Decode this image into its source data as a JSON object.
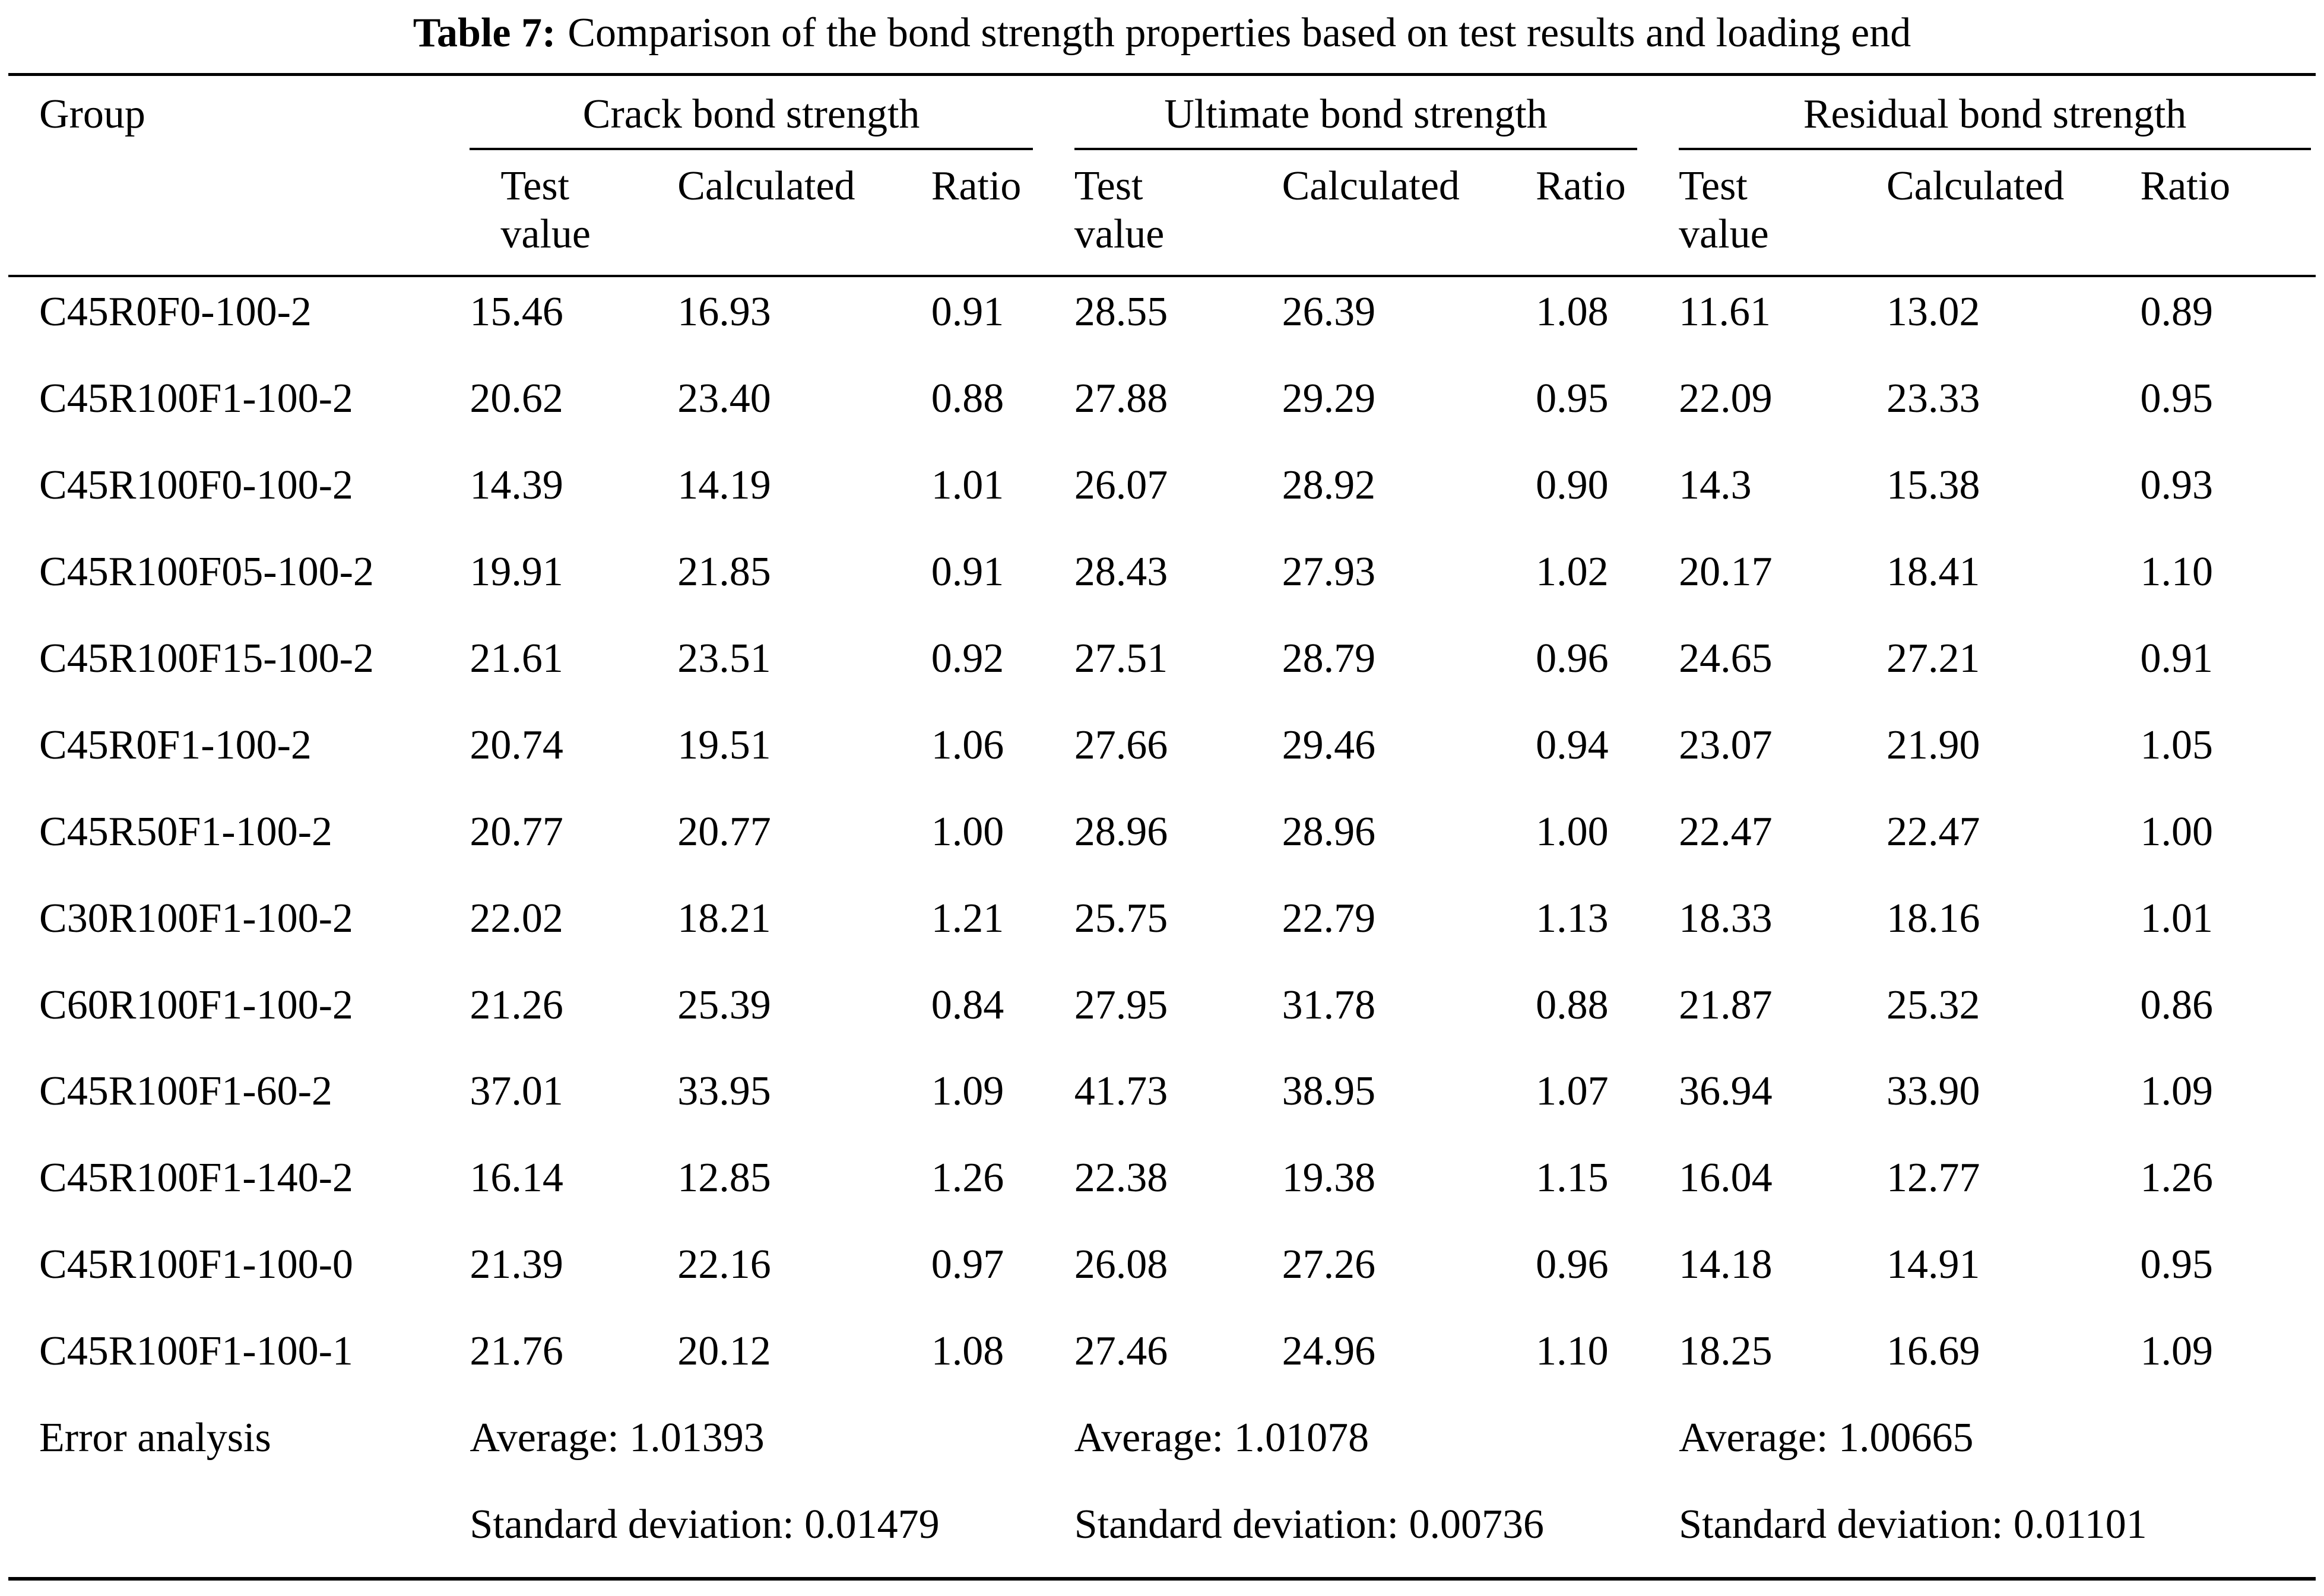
{
  "title": {
    "label": "Table 7:",
    "text": "Comparison of the bond strength properties based on test results and loading end"
  },
  "table": {
    "group_header": "Group",
    "span_headers": [
      "Crack bond strength",
      "Ultimate bond strength",
      "Residual bond strength"
    ],
    "sub_headers": [
      "Test value",
      "Calculated",
      "Ratio"
    ],
    "rows": [
      {
        "group": "C45R0F0-100-2",
        "crack": [
          "15.46",
          "16.93",
          "0.91"
        ],
        "ultimate": [
          "28.55",
          "26.39",
          "1.08"
        ],
        "residual": [
          "11.61",
          "13.02",
          "0.89"
        ]
      },
      {
        "group": "C45R100F1-100-2",
        "crack": [
          "20.62",
          "23.40",
          "0.88"
        ],
        "ultimate": [
          "27.88",
          "29.29",
          "0.95"
        ],
        "residual": [
          "22.09",
          "23.33",
          "0.95"
        ]
      },
      {
        "group": "C45R100F0-100-2",
        "crack": [
          "14.39",
          "14.19",
          "1.01"
        ],
        "ultimate": [
          "26.07",
          "28.92",
          "0.90"
        ],
        "residual": [
          "14.3",
          "15.38",
          "0.93"
        ]
      },
      {
        "group": "C45R100F05-100-2",
        "crack": [
          "19.91",
          "21.85",
          "0.91"
        ],
        "ultimate": [
          "28.43",
          "27.93",
          "1.02"
        ],
        "residual": [
          "20.17",
          "18.41",
          "1.10"
        ]
      },
      {
        "group": "C45R100F15-100-2",
        "crack": [
          "21.61",
          "23.51",
          "0.92"
        ],
        "ultimate": [
          "27.51",
          "28.79",
          "0.96"
        ],
        "residual": [
          "24.65",
          "27.21",
          "0.91"
        ]
      },
      {
        "group": "C45R0F1-100-2",
        "crack": [
          "20.74",
          "19.51",
          "1.06"
        ],
        "ultimate": [
          "27.66",
          "29.46",
          "0.94"
        ],
        "residual": [
          "23.07",
          "21.90",
          "1.05"
        ]
      },
      {
        "group": "C45R50F1-100-2",
        "crack": [
          "20.77",
          "20.77",
          "1.00"
        ],
        "ultimate": [
          "28.96",
          "28.96",
          "1.00"
        ],
        "residual": [
          "22.47",
          "22.47",
          "1.00"
        ]
      },
      {
        "group": "C30R100F1-100-2",
        "crack": [
          "22.02",
          "18.21",
          "1.21"
        ],
        "ultimate": [
          "25.75",
          "22.79",
          "1.13"
        ],
        "residual": [
          "18.33",
          "18.16",
          "1.01"
        ]
      },
      {
        "group": "C60R100F1-100-2",
        "crack": [
          "21.26",
          "25.39",
          "0.84"
        ],
        "ultimate": [
          "27.95",
          "31.78",
          "0.88"
        ],
        "residual": [
          "21.87",
          "25.32",
          "0.86"
        ]
      },
      {
        "group": "C45R100F1-60-2",
        "crack": [
          "37.01",
          "33.95",
          "1.09"
        ],
        "ultimate": [
          "41.73",
          "38.95",
          "1.07"
        ],
        "residual": [
          "36.94",
          "33.90",
          "1.09"
        ]
      },
      {
        "group": "C45R100F1-140-2",
        "crack": [
          "16.14",
          "12.85",
          "1.26"
        ],
        "ultimate": [
          "22.38",
          "19.38",
          "1.15"
        ],
        "residual": [
          "16.04",
          "12.77",
          "1.26"
        ]
      },
      {
        "group": "C45R100F1-100-0",
        "crack": [
          "21.39",
          "22.16",
          "0.97"
        ],
        "ultimate": [
          "26.08",
          "27.26",
          "0.96"
        ],
        "residual": [
          "14.18",
          "14.91",
          "0.95"
        ]
      },
      {
        "group": "C45R100F1-100-1",
        "crack": [
          "21.76",
          "20.12",
          "1.08"
        ],
        "ultimate": [
          "27.46",
          "24.96",
          "1.10"
        ],
        "residual": [
          "18.25",
          "16.69",
          "1.09"
        ]
      }
    ],
    "error_analysis": {
      "label": "Error analysis",
      "averages": [
        "Average: 1.01393",
        "Average: 1.01078",
        "Average: 1.00665"
      ],
      "std_devs": [
        "Standard deviation: 0.01479",
        "Standard deviation: 0.00736",
        "Standard deviation: 0.01101"
      ]
    }
  }
}
